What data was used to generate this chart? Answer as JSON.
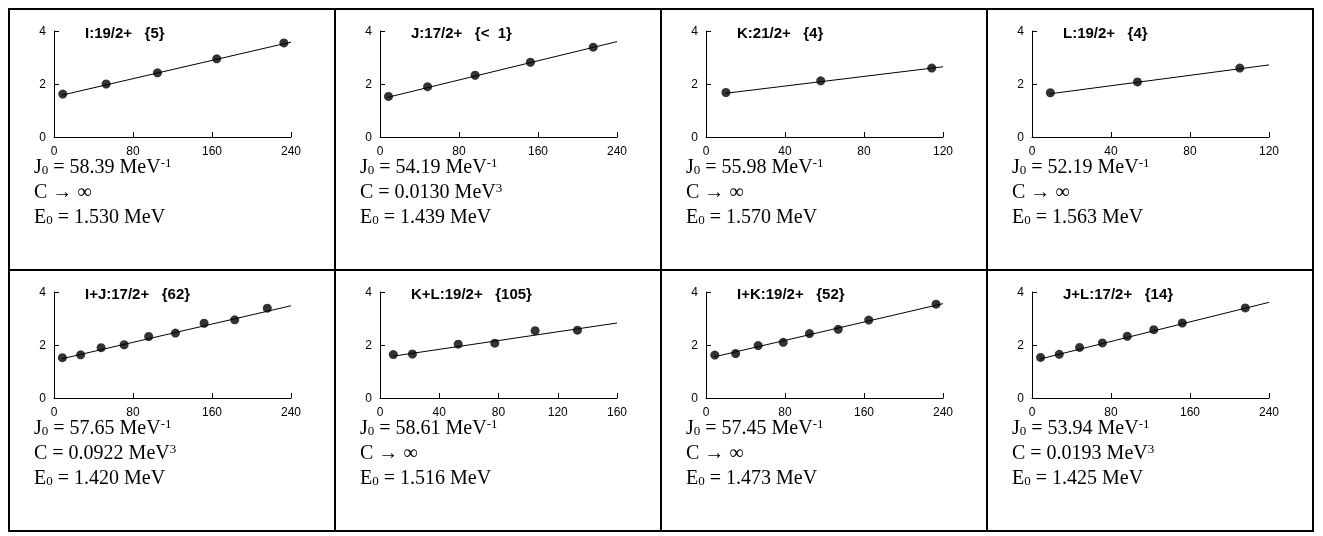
{
  "chart_data": [
    {
      "type": "scatter",
      "title": "I:19/2+   {5}",
      "xlim": [
        0,
        240
      ],
      "xticks": [
        0,
        80,
        160,
        240
      ],
      "ylim": [
        0,
        4
      ],
      "yticks": [
        0,
        2,
        4
      ],
      "annotations": [
        "J$_{0}$ = 58.39 MeV$^{-1}$",
        "C → ∞",
        "E$_{0}$ = 1.530 MeV"
      ],
      "series": [
        {
          "color": "#000000",
          "marker": "circle",
          "x": [
            8.9,
            52.8,
            104.8,
            164.8,
            232.8
          ],
          "values": [
            1.62,
            2.0,
            2.42,
            2.95,
            3.55
          ]
        },
        {
          "type": "line",
          "color": "#000000",
          "x": [
            8,
            240
          ],
          "values": [
            1.58,
            3.58
          ]
        }
      ]
    },
    {
      "type": "scatter",
      "title": "J:17/2+   {<  1}",
      "xlim": [
        0,
        240
      ],
      "xticks": [
        0,
        80,
        160,
        240
      ],
      "ylim": [
        0,
        4
      ],
      "yticks": [
        0,
        2,
        4
      ],
      "annotations": [
        "J$_{0}$ = 54.19 MeV$^{-1}$",
        "C = 0.0130 MeV$^{3}$",
        "E$_{0}$ = 1.439 MeV"
      ],
      "series": [
        {
          "color": "#000000",
          "marker": "circle",
          "x": [
            8.6,
            48.2,
            96.3,
            152.3,
            215.9
          ],
          "values": [
            1.53,
            1.9,
            2.33,
            2.82,
            3.39
          ]
        },
        {
          "type": "line",
          "color": "#000000",
          "x": [
            8,
            240
          ],
          "values": [
            1.5,
            3.6
          ]
        }
      ]
    },
    {
      "type": "scatter",
      "title": "K:21/2+   {4}",
      "xlim": [
        0,
        120
      ],
      "xticks": [
        0,
        40,
        80,
        120
      ],
      "ylim": [
        0,
        4
      ],
      "yticks": [
        0,
        2,
        4
      ],
      "annotations": [
        "J$_{0}$ = 55.98 MeV$^{-1}$",
        "C → ∞",
        "E$_{0}$ = 1.570 MeV"
      ],
      "series": [
        {
          "color": "#000000",
          "marker": "circle",
          "x": [
            10.1,
            58.1,
            114.3
          ],
          "values": [
            1.68,
            2.12,
            2.6
          ]
        },
        {
          "type": "line",
          "color": "#000000",
          "x": [
            10,
            120
          ],
          "values": [
            1.65,
            2.65
          ]
        }
      ]
    },
    {
      "type": "scatter",
      "title": "L:19/2+   {4}",
      "xlim": [
        0,
        120
      ],
      "xticks": [
        0,
        40,
        80,
        120
      ],
      "ylim": [
        0,
        4
      ],
      "yticks": [
        0,
        2,
        4
      ],
      "annotations": [
        "J$_{0}$ = 52.19 MeV$^{-1}$",
        "C → ∞",
        "E$_{0}$ = 1.563 MeV"
      ],
      "series": [
        {
          "color": "#000000",
          "marker": "circle",
          "x": [
            9.3,
            53.4,
            105.2
          ],
          "values": [
            1.67,
            2.08,
            2.6
          ]
        },
        {
          "type": "line",
          "color": "#000000",
          "x": [
            9,
            120
          ],
          "values": [
            1.63,
            2.72
          ]
        }
      ]
    },
    {
      "type": "scatter",
      "title": "I+J:17/2+   {62}",
      "xlim": [
        0,
        240
      ],
      "xticks": [
        0,
        80,
        160,
        240
      ],
      "ylim": [
        0,
        4
      ],
      "yticks": [
        0,
        2,
        4
      ],
      "annotations": [
        "J$_{0}$ = 57.65 MeV$^{-1}$",
        "C = 0.0922 MeV$^{3}$",
        "E$_{0}$ = 1.420 MeV"
      ],
      "series": [
        {
          "color": "#000000",
          "marker": "circle",
          "x": [
            8.5,
            27,
            47.7,
            71,
            95.9,
            123,
            152,
            183,
            216
          ],
          "values": [
            1.52,
            1.63,
            1.9,
            2.01,
            2.32,
            2.45,
            2.82,
            2.95,
            3.39
          ]
        },
        {
          "type": "line",
          "color": "#000000",
          "x": [
            8,
            240
          ],
          "values": [
            1.48,
            3.48
          ]
        }
      ]
    },
    {
      "type": "scatter",
      "title": "K+L:19/2+   {105}",
      "xlim": [
        0,
        160
      ],
      "xticks": [
        0,
        40,
        80,
        120,
        160
      ],
      "ylim": [
        0,
        4
      ],
      "yticks": [
        0,
        2,
        4
      ],
      "annotations": [
        "J$_{0}$ = 58.61 MeV$^{-1}$",
        "C → ∞",
        "E$_{0}$ = 1.516 MeV"
      ],
      "series": [
        {
          "color": "#000000",
          "marker": "circle",
          "x": [
            9,
            21.9,
            52.8,
            77.5,
            104.7,
            133.3
          ],
          "values": [
            1.64,
            1.66,
            2.03,
            2.07,
            2.54,
            2.56
          ]
        },
        {
          "type": "line",
          "color": "#000000",
          "x": [
            9,
            160
          ],
          "values": [
            1.58,
            2.83
          ]
        }
      ]
    },
    {
      "type": "scatter",
      "title": "I+K:19/2+   {52}",
      "xlim": [
        0,
        240
      ],
      "xticks": [
        0,
        80,
        160,
        240
      ],
      "ylim": [
        0,
        4
      ],
      "yticks": [
        0,
        2,
        4
      ],
      "annotations": [
        "J$_{0}$ = 57.45 MeV$^{-1}$",
        "C → ∞",
        "E$_{0}$ = 1.473 MeV"
      ],
      "series": [
        {
          "color": "#000000",
          "marker": "circle",
          "x": [
            8.9,
            30,
            52.8,
            78.2,
            104.8,
            133.9,
            164.8,
            233
          ],
          "values": [
            1.62,
            1.68,
            1.98,
            2.1,
            2.43,
            2.59,
            2.94,
            3.54
          ]
        },
        {
          "type": "line",
          "color": "#000000",
          "x": [
            8,
            240
          ],
          "values": [
            1.55,
            3.56
          ]
        }
      ]
    },
    {
      "type": "scatter",
      "title": "J+L:17/2+   {14}",
      "xlim": [
        0,
        240
      ],
      "xticks": [
        0,
        80,
        160,
        240
      ],
      "ylim": [
        0,
        4
      ],
      "yticks": [
        0,
        2,
        4
      ],
      "annotations": [
        "J$_{0}$ = 53.94 MeV$^{-1}$",
        "C = 0.0193 MeV$^{3}$",
        "E$_{0}$ = 1.425 MeV"
      ],
      "series": [
        {
          "color": "#000000",
          "marker": "circle",
          "x": [
            8.7,
            27.6,
            48.2,
            71.3,
            96.5,
            123.3,
            152.2,
            216
          ],
          "values": [
            1.53,
            1.65,
            1.91,
            2.08,
            2.33,
            2.58,
            2.83,
            3.4
          ]
        },
        {
          "type": "line",
          "color": "#000000",
          "x": [
            8,
            240
          ],
          "values": [
            1.47,
            3.61
          ]
        }
      ]
    }
  ]
}
